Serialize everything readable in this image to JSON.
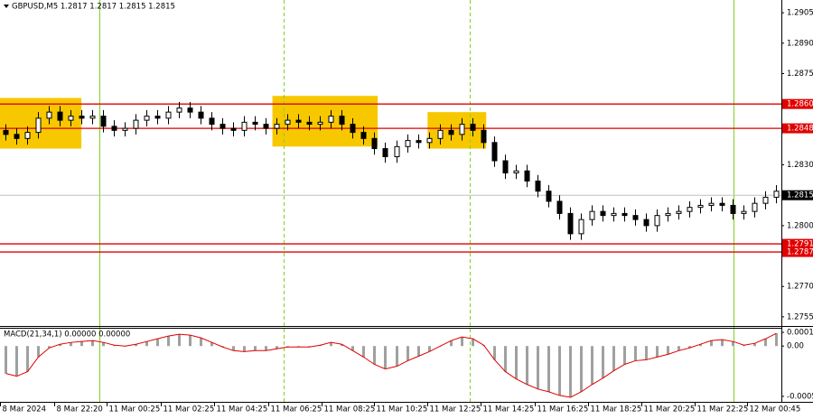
{
  "chart_data": [
    {
      "type": "candlestick",
      "title": "GBPUSD,M5  1.2817 1.2817 1.2815 1.2815",
      "open": [
        1.2847,
        1.2845,
        1.2843,
        1.2846,
        1.2853,
        1.2856,
        1.2852,
        1.2854,
        1.2853,
        1.2854,
        1.2849,
        1.2847,
        1.2848,
        1.2852,
        1.2854,
        1.2853,
        1.2856,
        1.2858,
        1.2856,
        1.2853,
        1.285,
        1.2848,
        1.2847,
        1.2851,
        1.285,
        1.2848,
        1.285,
        1.2852,
        1.2851,
        1.285,
        1.2851,
        1.2854,
        1.285,
        1.2846,
        1.2843,
        1.2838,
        1.2834,
        1.2839,
        1.2842,
        1.2841,
        1.2843,
        1.2847,
        1.2845,
        1.285,
        1.2847,
        1.2841,
        1.2832,
        1.2826,
        1.2827,
        1.2822,
        1.2817,
        1.2812,
        1.2806,
        1.2796,
        1.2803,
        1.2807,
        1.2805,
        1.2806,
        1.2805,
        1.2803,
        1.28,
        1.2805,
        1.2806,
        1.2807,
        1.2809,
        1.281,
        1.2811,
        1.281,
        1.2806,
        1.2807,
        1.2811,
        1.2814
      ],
      "high": [
        1.285,
        1.2848,
        1.2849,
        1.2856,
        1.2859,
        1.2859,
        1.2857,
        1.2857,
        1.2857,
        1.2857,
        1.2852,
        1.2851,
        1.2855,
        1.2857,
        1.2857,
        1.2859,
        1.2861,
        1.2861,
        1.2859,
        1.2856,
        1.2853,
        1.2851,
        1.2854,
        1.2854,
        1.2853,
        1.2853,
        1.2855,
        1.2855,
        1.2854,
        1.2854,
        1.2857,
        1.2857,
        1.2853,
        1.2849,
        1.2846,
        1.2841,
        1.2842,
        1.2845,
        1.2845,
        1.2846,
        1.285,
        1.285,
        1.2853,
        1.2853,
        1.285,
        1.2844,
        1.2835,
        1.283,
        1.283,
        1.2825,
        1.282,
        1.2815,
        1.2809,
        1.2806,
        1.281,
        1.281,
        1.2809,
        1.2809,
        1.2808,
        1.2806,
        1.2808,
        1.2809,
        1.281,
        1.2812,
        1.2813,
        1.2814,
        1.2814,
        1.2813,
        1.281,
        1.2814,
        1.2817,
        1.282
      ],
      "low": [
        1.2842,
        1.284,
        1.284,
        1.2843,
        1.285,
        1.2849,
        1.2849,
        1.285,
        1.285,
        1.2846,
        1.2844,
        1.2844,
        1.2845,
        1.2849,
        1.285,
        1.285,
        1.2853,
        1.2853,
        1.285,
        1.2847,
        1.2845,
        1.2844,
        1.2844,
        1.2847,
        1.2845,
        1.2845,
        1.2847,
        1.2848,
        1.2847,
        1.2847,
        1.2848,
        1.2847,
        1.2843,
        1.284,
        1.2835,
        1.2831,
        1.2831,
        1.2836,
        1.2838,
        1.2838,
        1.284,
        1.2842,
        1.2842,
        1.2844,
        1.2838,
        1.2829,
        1.2823,
        1.2823,
        1.2819,
        1.2814,
        1.2809,
        1.2803,
        1.2793,
        1.2793,
        1.28,
        1.2802,
        1.2802,
        1.2802,
        1.28,
        1.2797,
        1.2797,
        1.2802,
        1.2803,
        1.2804,
        1.2806,
        1.2807,
        1.2807,
        1.2803,
        1.2803,
        1.2804,
        1.2808,
        1.2811
      ],
      "close": [
        1.2845,
        1.2843,
        1.2846,
        1.2853,
        1.2856,
        1.2852,
        1.2854,
        1.2853,
        1.2854,
        1.2849,
        1.2847,
        1.2848,
        1.2852,
        1.2854,
        1.2853,
        1.2856,
        1.2858,
        1.2856,
        1.2853,
        1.285,
        1.2848,
        1.2847,
        1.2851,
        1.285,
        1.2848,
        1.285,
        1.2852,
        1.2851,
        1.285,
        1.2851,
        1.2854,
        1.285,
        1.2846,
        1.2843,
        1.2838,
        1.2834,
        1.2839,
        1.2842,
        1.2841,
        1.2843,
        1.2847,
        1.2845,
        1.285,
        1.2847,
        1.2841,
        1.2832,
        1.2826,
        1.2827,
        1.2822,
        1.2817,
        1.2812,
        1.2806,
        1.2796,
        1.2803,
        1.2807,
        1.2805,
        1.2806,
        1.2805,
        1.2803,
        1.28,
        1.2805,
        1.2806,
        1.2807,
        1.2809,
        1.281,
        1.2811,
        1.281,
        1.2806,
        1.2807,
        1.2811,
        1.2814,
        1.2817
      ],
      "xlim": [
        -0.5,
        71.5
      ],
      "xticks": [
        {
          "value": -0.5,
          "label": "8 Mar 2024"
        },
        {
          "value": 4.5,
          "label": "8 Mar 22:20"
        },
        {
          "value": 9.3,
          "label": "11 Mar 00:25"
        },
        {
          "value": 14.3,
          "label": "11 Mar 02:25"
        },
        {
          "value": 19.2,
          "label": "11 Mar 04:25"
        },
        {
          "value": 24.2,
          "label": "11 Mar 06:25"
        },
        {
          "value": 29.1,
          "label": "11 Mar 08:25"
        },
        {
          "value": 34,
          "label": "11 Mar 10:25"
        },
        {
          "value": 38.9,
          "label": "11 Mar 12:25"
        },
        {
          "value": 43.8,
          "label": "11 Mar 14:25"
        },
        {
          "value": 48.8,
          "label": "11 Mar 16:25"
        },
        {
          "value": 53.7,
          "label": "11 Mar 18:25"
        },
        {
          "value": 58.6,
          "label": "11 Mar 20:25"
        },
        {
          "value": 63.5,
          "label": "11 Mar 22:25"
        },
        {
          "value": 68.3,
          "label": "12 Mar 00:45"
        }
      ],
      "ylim": [
        1.27505,
        1.29113
      ],
      "yticks": [
        1.2905,
        {
          "value": 1.289,
          "label": "1.2890"
        },
        1.2875,
        {
          "value": 1.283,
          "label": "1.2830"
        },
        {
          "value": 1.28,
          "label": "1.2800"
        },
        {
          "value": 1.277,
          "label": "1.2770"
        },
        1.2755
      ],
      "levels": [
        {
          "value": 1.286,
          "label": "1.2860"
        },
        {
          "value": 1.2848,
          "label": "1.2848"
        },
        {
          "value": 1.2791,
          "label": "1.2791"
        },
        {
          "value": 1.2787,
          "label": "1.2787"
        }
      ],
      "level_color": "#e00000",
      "current_price": 1.2815,
      "zones": [
        {
          "x": [
            -0.5,
            7
          ],
          "y": [
            1.2838,
            1.2863
          ]
        },
        {
          "x": [
            24.6,
            34.3
          ],
          "y": [
            1.2839,
            1.2864
          ]
        },
        {
          "x": [
            38.9,
            44.3
          ],
          "y": [
            1.2838,
            1.2856
          ]
        }
      ],
      "zone_color": "#f7c800",
      "session_lines": [
        {
          "x": 8.67,
          "style": "solid"
        },
        {
          "x": 25.6,
          "style": "dashed"
        },
        {
          "x": 42.8,
          "style": "dashed"
        },
        {
          "x": 67.1,
          "style": "solid"
        }
      ],
      "session_color": "#7fd320"
    },
    {
      "type": "macd",
      "title": "MACD(21,34,1) 0.00000 0.00000",
      "values": [
        -0.0003,
        -0.00033,
        -0.00028,
        -0.00012,
        -2e-05,
        2e-05,
        4e-05,
        5e-05,
        6e-05,
        4e-05,
        1e-05,
        0,
        2e-05,
        5e-05,
        8e-05,
        0.00011,
        0.00013,
        0.00012,
        9e-05,
        4e-05,
        -1e-05,
        -5e-05,
        -6e-05,
        -5e-05,
        -5e-05,
        -3e-05,
        -1e-05,
        -1e-05,
        -1e-05,
        1e-05,
        4e-05,
        2e-05,
        -5e-05,
        -0.00012,
        -0.0002,
        -0.00025,
        -0.00022,
        -0.00016,
        -0.00011,
        -6e-05,
        0,
        6e-05,
        0.0001,
        8e-05,
        1e-05,
        -0.00015,
        -0.00028,
        -0.00036,
        -0.00042,
        -0.00047,
        -0.0005,
        -0.00054,
        -0.00056,
        -0.0005,
        -0.00042,
        -0.00035,
        -0.00027,
        -0.0002,
        -0.00016,
        -0.00015,
        -0.00012,
        -9e-05,
        -5e-05,
        -2e-05,
        2e-05,
        6e-05,
        7e-05,
        5e-05,
        1e-05,
        3e-05,
        8e-05,
        0.00014
      ],
      "bar_color": "#a0a0a0",
      "line_color": "#e00000",
      "xlim": [
        -0.5,
        71.5
      ],
      "ylim": [
        -0.00061,
        0.00019
      ],
      "yticks": [
        0.00015,
        {
          "value": 0,
          "label": "0.00"
        },
        -0.00055
      ]
    }
  ]
}
